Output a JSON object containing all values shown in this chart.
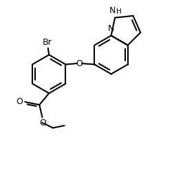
{
  "bg_color": "#ffffff",
  "line_color": "#000000",
  "line_width": 1.5,
  "font_size": 9,
  "font_size_small": 7.5,
  "figsize": [
    2.82,
    2.54
  ],
  "dpi": 100,
  "xlim": [
    0,
    10
  ],
  "ylim": [
    0,
    9
  ]
}
